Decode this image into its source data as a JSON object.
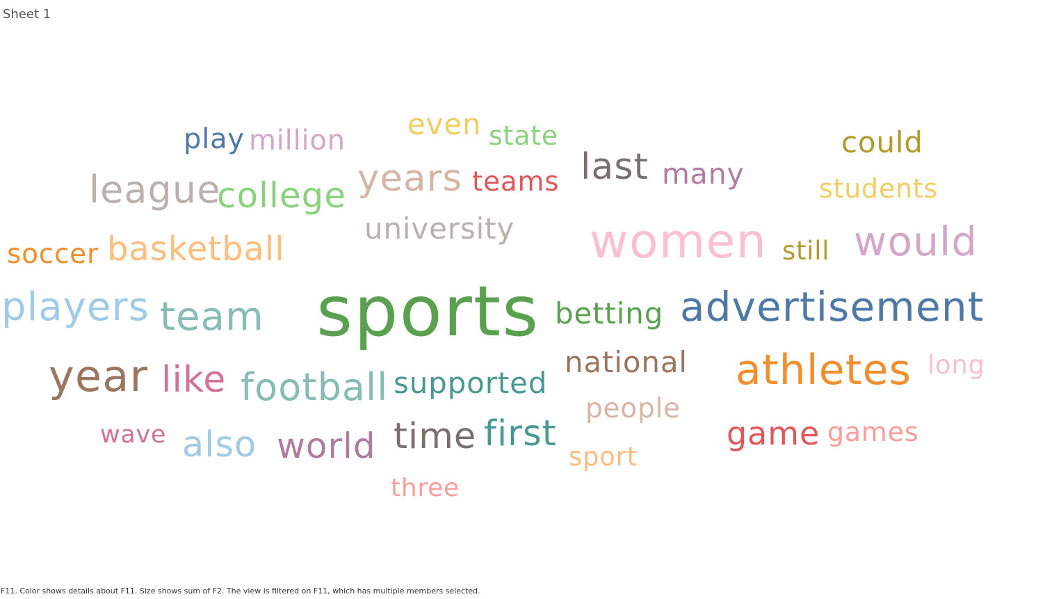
{
  "sheet": {
    "title": "Sheet 1"
  },
  "caption": "F11.  Color shows details about F11.  Size shows sum of F2. The view is filtered on F11, which has multiple members selected.",
  "chart_data": {
    "type": "wordcloud",
    "color_field": "F11",
    "size_field": "F2",
    "words": [
      {
        "text": "sports",
        "weight": 100,
        "color": "#59a14f"
      },
      {
        "text": "women",
        "weight": 68,
        "color": "#fabfd2"
      },
      {
        "text": "year",
        "weight": 62,
        "color": "#9c755f"
      },
      {
        "text": "athletes",
        "weight": 60,
        "color": "#f28e2b"
      },
      {
        "text": "advertisement",
        "weight": 58,
        "color": "#4e79a7"
      },
      {
        "text": "would",
        "weight": 58,
        "color": "#d4a6c8"
      },
      {
        "text": "team",
        "weight": 56,
        "color": "#86bcb6"
      },
      {
        "text": "players",
        "weight": 56,
        "color": "#a0cbe8"
      },
      {
        "text": "football",
        "weight": 54,
        "color": "#86bcb6"
      },
      {
        "text": "league",
        "weight": 54,
        "color": "#bab0ac"
      },
      {
        "text": "years",
        "weight": 53,
        "color": "#d7b5a6"
      },
      {
        "text": "last",
        "weight": 52,
        "color": "#79706e"
      },
      {
        "text": "like",
        "weight": 52,
        "color": "#d37295"
      },
      {
        "text": "also",
        "weight": 51,
        "color": "#a0cbe8"
      },
      {
        "text": "time",
        "weight": 51,
        "color": "#79706e"
      },
      {
        "text": "first",
        "weight": 51,
        "color": "#499894"
      },
      {
        "text": "world",
        "weight": 50,
        "color": "#b07aa1"
      },
      {
        "text": "college",
        "weight": 50,
        "color": "#8cd17d"
      },
      {
        "text": "basketball",
        "weight": 48,
        "color": "#ffbe7d"
      },
      {
        "text": "game",
        "weight": 46,
        "color": "#e15759"
      },
      {
        "text": "betting",
        "weight": 42,
        "color": "#59a14f"
      },
      {
        "text": "supported",
        "weight": 42,
        "color": "#499894"
      },
      {
        "text": "national",
        "weight": 42,
        "color": "#9c755f"
      },
      {
        "text": "university",
        "weight": 42,
        "color": "#bab0ac"
      },
      {
        "text": "could",
        "weight": 42,
        "color": "#b6992d"
      },
      {
        "text": "even",
        "weight": 42,
        "color": "#f1ce63"
      },
      {
        "text": "many",
        "weight": 41,
        "color": "#b07aa1"
      },
      {
        "text": "million",
        "weight": 40,
        "color": "#d4a6c8"
      },
      {
        "text": "play",
        "weight": 40,
        "color": "#4e79a7"
      },
      {
        "text": "soccer",
        "weight": 39,
        "color": "#f28e2b"
      },
      {
        "text": "people",
        "weight": 39,
        "color": "#d7b5a6"
      },
      {
        "text": "teams",
        "weight": 39,
        "color": "#e15759"
      },
      {
        "text": "students",
        "weight": 38,
        "color": "#f1ce63"
      },
      {
        "text": "games",
        "weight": 38,
        "color": "#ff9d9a"
      },
      {
        "text": "state",
        "weight": 38,
        "color": "#8cd17d"
      },
      {
        "text": "long",
        "weight": 37,
        "color": "#fabfd2"
      },
      {
        "text": "sport",
        "weight": 37,
        "color": "#ffbe7d"
      },
      {
        "text": "still",
        "weight": 37,
        "color": "#b6992d"
      },
      {
        "text": "three",
        "weight": 36,
        "color": "#ff9d9a"
      },
      {
        "text": "wave",
        "weight": 35,
        "color": "#d37295"
      }
    ]
  }
}
